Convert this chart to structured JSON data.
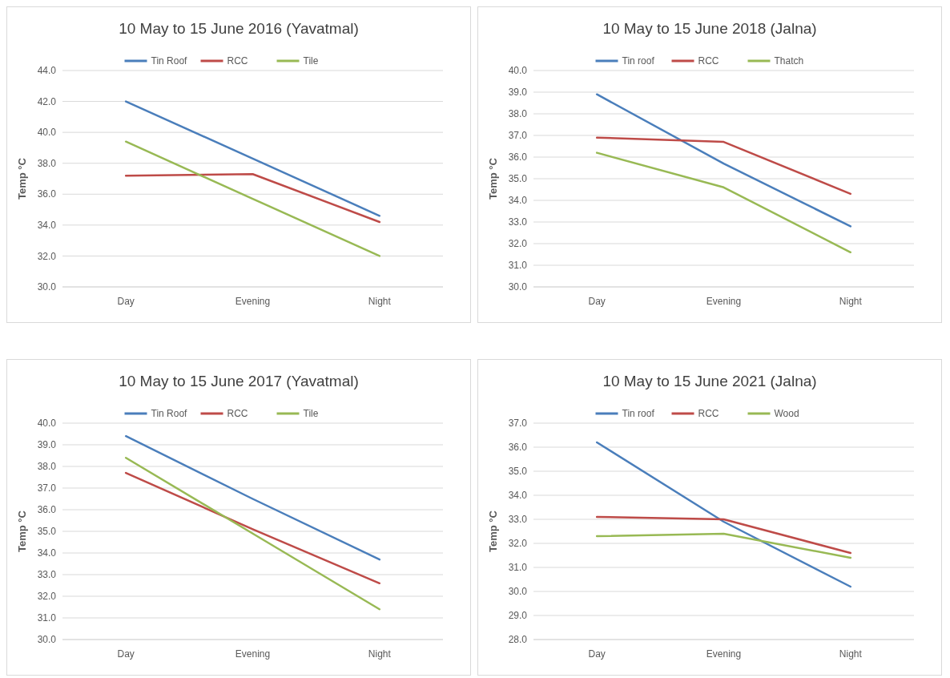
{
  "chart_data": [
    {
      "type": "line",
      "title": "10 May to 15 June 2016 (Yavatmal)",
      "ylabel": "Temp °C",
      "categories": [
        "Day",
        "Evening",
        "Night"
      ],
      "ylim": [
        30,
        44
      ],
      "yticks": [
        {
          "value": 30,
          "label": "30.0"
        },
        {
          "value": 32,
          "label": "32.0"
        },
        {
          "value": 34,
          "label": "34.0"
        },
        {
          "value": 36,
          "label": "36.0"
        },
        {
          "value": 38,
          "label": "38.0"
        },
        {
          "value": 40,
          "label": "40.0"
        },
        {
          "value": 42,
          "label": "42.0"
        },
        {
          "value": 44,
          "label": "44.0"
        }
      ],
      "grid": "y",
      "legend": "top",
      "marker": "none",
      "series": [
        {
          "name": "Tin Roof",
          "color": "#4a7ebb",
          "values": [
            42.0,
            38.3,
            34.6
          ]
        },
        {
          "name": "RCC",
          "color": "#be4b48",
          "values": [
            37.2,
            37.3,
            34.2
          ]
        },
        {
          "name": "Tile",
          "color": "#98b954",
          "values": [
            39.4,
            35.7,
            32.0
          ]
        }
      ]
    },
    {
      "type": "line",
      "title": "10 May to 15 June 2018 (Jalna)",
      "ylabel": "Temp °C",
      "categories": [
        "Day",
        "Evening",
        "Night"
      ],
      "ylim": [
        30,
        40
      ],
      "yticks": [
        {
          "value": 30,
          "label": "30.0"
        },
        {
          "value": 31,
          "label": "31.0"
        },
        {
          "value": 32,
          "label": "32.0"
        },
        {
          "value": 33,
          "label": "33.0"
        },
        {
          "value": 34,
          "label": "34.0"
        },
        {
          "value": 35,
          "label": "35.0"
        },
        {
          "value": 36,
          "label": "36.0"
        },
        {
          "value": 37,
          "label": "37.0"
        },
        {
          "value": 38,
          "label": "38.0"
        },
        {
          "value": 39,
          "label": "39.0"
        },
        {
          "value": 40,
          "label": "40.0"
        }
      ],
      "grid": "y",
      "legend": "top",
      "marker": "none",
      "series": [
        {
          "name": "Tin roof",
          "color": "#4a7ebb",
          "values": [
            38.9,
            35.7,
            32.8
          ]
        },
        {
          "name": "RCC",
          "color": "#be4b48",
          "values": [
            36.9,
            36.7,
            34.3
          ]
        },
        {
          "name": "Thatch",
          "color": "#98b954",
          "values": [
            36.2,
            34.6,
            31.6
          ]
        }
      ]
    },
    {
      "type": "line",
      "title": "10 May to 15 June 2017 (Yavatmal)",
      "ylabel": "Temp °C",
      "categories": [
        "Day",
        "Evening",
        "Night"
      ],
      "ylim": [
        30,
        40
      ],
      "yticks": [
        {
          "value": 30,
          "label": "30.0"
        },
        {
          "value": 31,
          "label": "31.0"
        },
        {
          "value": 32,
          "label": "32.0"
        },
        {
          "value": 33,
          "label": "33.0"
        },
        {
          "value": 34,
          "label": "34.0"
        },
        {
          "value": 35,
          "label": "35.0"
        },
        {
          "value": 36,
          "label": "36.0"
        },
        {
          "value": 37,
          "label": "37.0"
        },
        {
          "value": 38,
          "label": "38.0"
        },
        {
          "value": 39,
          "label": "39.0"
        },
        {
          "value": 40,
          "label": "40.0"
        }
      ],
      "grid": "y",
      "legend": "top",
      "marker": "none",
      "series": [
        {
          "name": "Tin Roof",
          "color": "#4a7ebb",
          "values": [
            39.4,
            36.5,
            33.7
          ]
        },
        {
          "name": "RCC",
          "color": "#be4b48",
          "values": [
            37.7,
            35.1,
            32.6
          ]
        },
        {
          "name": "Tile",
          "color": "#98b954",
          "values": [
            38.4,
            34.9,
            31.4
          ]
        }
      ]
    },
    {
      "type": "line",
      "title": "10 May to 15 June 2021 (Jalna)",
      "ylabel": "Temp °C",
      "categories": [
        "Day",
        "Evening",
        "Night"
      ],
      "ylim": [
        28,
        37
      ],
      "yticks": [
        {
          "value": 28,
          "label": "28.0"
        },
        {
          "value": 29,
          "label": "29.0"
        },
        {
          "value": 30,
          "label": "30.0"
        },
        {
          "value": 31,
          "label": "31.0"
        },
        {
          "value": 32,
          "label": "32.0"
        },
        {
          "value": 33,
          "label": "33.0"
        },
        {
          "value": 34,
          "label": "34.0"
        },
        {
          "value": 35,
          "label": "35.0"
        },
        {
          "value": 36,
          "label": "36.0"
        },
        {
          "value": 37,
          "label": "37.0"
        }
      ],
      "grid": "y",
      "legend": "top",
      "marker": "none",
      "series": [
        {
          "name": "Tin roof",
          "color": "#4a7ebb",
          "values": [
            36.2,
            32.9,
            30.2
          ]
        },
        {
          "name": "RCC",
          "color": "#be4b48",
          "values": [
            33.1,
            33.0,
            31.6
          ]
        },
        {
          "name": "Wood",
          "color": "#98b954",
          "values": [
            32.3,
            32.4,
            31.4
          ]
        }
      ]
    }
  ]
}
